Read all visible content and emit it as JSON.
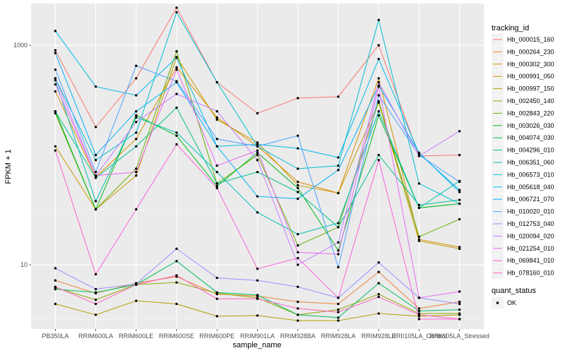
{
  "chart_data": {
    "type": "line",
    "xlabel": "sample_name",
    "ylabel": "FPKM + 1",
    "y_scale": "log10",
    "ylim": [
      2.6,
      2400
    ],
    "y_ticks": [
      10,
      1000
    ],
    "y_tick_labels": [
      "10",
      "1000"
    ],
    "grid": true,
    "legend_placement": "right",
    "categories": [
      "PB350LA",
      "RRIM600LA",
      "RRIM600LE",
      "RRIM600SE",
      "RRIM600PE",
      "RRIM901LA",
      "RRIM928BA",
      "RRIM928LA",
      "RRIM928LE",
      "RRII105LA_Control",
      "RRII105LA_Stressed"
    ],
    "series": [
      {
        "name": "Hb_000015_160",
        "color": "#F8766D",
        "values": [
          900,
          180,
          500,
          2200,
          460,
          240,
          330,
          340,
          1000,
          98,
          100
        ]
      },
      {
        "name": "Hb_000264_230",
        "color": "#EC8239",
        "values": [
          7.2,
          5.5,
          6.8,
          7.8,
          5.4,
          5.2,
          4.6,
          4.4,
          8.6,
          4.0,
          4.6
        ]
      },
      {
        "name": "Hb_000302_300",
        "color": "#DB8E00",
        "values": [
          380,
          63,
          140,
          630,
          220,
          120,
          57,
          45,
          500,
          17,
          14.5
        ]
      },
      {
        "name": "Hb_000991_050",
        "color": "#C79800",
        "values": [
          120,
          32,
          65,
          780,
          210,
          130,
          53,
          45,
          300,
          16.5,
          14
        ]
      },
      {
        "name": "Hb_000997_150",
        "color": "#AEA200",
        "values": [
          4.4,
          3.5,
          4.7,
          4.4,
          3.4,
          3.45,
          3.1,
          3.1,
          3.6,
          3.4,
          3.5
        ]
      },
      {
        "name": "Hb_002450_140",
        "color": "#8FAA00",
        "values": [
          6.2,
          4.8,
          6.6,
          6.9,
          5.5,
          5.0,
          3.5,
          3.9,
          5.4,
          3.6,
          3.6
        ]
      },
      {
        "name": "Hb_002843_220",
        "color": "#64B200",
        "values": [
          240,
          32,
          75,
          880,
          55,
          100,
          15,
          22,
          310,
          18,
          26
        ]
      },
      {
        "name": "Hb_003026_030",
        "color": "#00B81B",
        "values": [
          250,
          32,
          230,
          150,
          52,
          105,
          50,
          13.5,
          230,
          33,
          36
        ]
      },
      {
        "name": "Hb_004074_030",
        "color": "#00BD5C",
        "values": [
          6.0,
          5.6,
          6.6,
          10.8,
          5.6,
          5.3,
          3.5,
          3.3,
          6.8,
          3.8,
          3.9
        ]
      },
      {
        "name": "Hb_004296_010",
        "color": "#00C08E",
        "values": [
          250,
          62,
          120,
          270,
          55,
          70,
          46,
          22,
          100,
          35,
          39
        ]
      },
      {
        "name": "Hb_006351_060",
        "color": "#00C1B2",
        "values": [
          480,
          38,
          220,
          160,
          70,
          30,
          19,
          24,
          250,
          33,
          58
        ]
      },
      {
        "name": "Hb_006573_010",
        "color": "#00BFD1",
        "values": [
          500,
          90,
          160,
          2000,
          460,
          120,
          75,
          80,
          1700,
          55,
          36
        ]
      },
      {
        "name": "Hb_005618_040",
        "color": "#00BAE9",
        "values": [
          1350,
          420,
          350,
          770,
          120,
          125,
          115,
          95,
          750,
          103,
          48
        ]
      },
      {
        "name": "Hb_006721_070",
        "color": "#00B0F6",
        "values": [
          850,
          100,
          250,
          460,
          120,
          42,
          40,
          73,
          430,
          105,
          46
        ]
      },
      {
        "name": "Hb_010020_010",
        "color": "#4AA2FF",
        "values": [
          600,
          70,
          650,
          470,
          140,
          120,
          150,
          9.5,
          350,
          100,
          57
        ]
      },
      {
        "name": "Hb_012753_040",
        "color": "#9590FF",
        "values": [
          9.3,
          6.0,
          6.7,
          14.0,
          7.6,
          7.2,
          6.3,
          5.0,
          10.5,
          5.0,
          4.4
        ]
      },
      {
        "name": "Hb_020094_020",
        "color": "#C77CFF",
        "values": [
          500,
          65,
          200,
          360,
          250,
          90,
          10.0,
          16,
          460,
          98,
          165
        ]
      },
      {
        "name": "Hb_021254_010",
        "color": "#E86BF2",
        "values": [
          440,
          65,
          70,
          600,
          80,
          110,
          13,
          12.5,
          420,
          5.0,
          5.7
        ]
      },
      {
        "name": "Hb_069841_010",
        "color": "#FA62DB",
        "values": [
          110,
          8.2,
          32,
          125,
          50,
          9.2,
          11.5,
          5.0,
          90,
          3.2,
          3.2
        ]
      },
      {
        "name": "Hb_078160_010",
        "color": "#FF62BC",
        "values": [
          6.3,
          4.4,
          6.6,
          8.0,
          4.9,
          4.9,
          4.0,
          3.7,
          5.1,
          3.5,
          3.2
        ]
      }
    ]
  },
  "legend": {
    "series_title": "tracking_id",
    "status_title": "quant_status",
    "status_items": [
      {
        "label": "OK"
      }
    ]
  }
}
